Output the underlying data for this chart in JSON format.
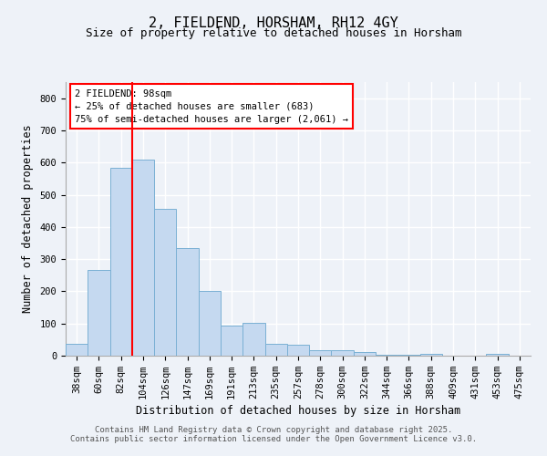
{
  "title1": "2, FIELDEND, HORSHAM, RH12 4GY",
  "title2": "Size of property relative to detached houses in Horsham",
  "xlabel": "Distribution of detached houses by size in Horsham",
  "ylabel": "Number of detached properties",
  "categories": [
    "38sqm",
    "60sqm",
    "82sqm",
    "104sqm",
    "126sqm",
    "147sqm",
    "169sqm",
    "191sqm",
    "213sqm",
    "235sqm",
    "257sqm",
    "278sqm",
    "300sqm",
    "322sqm",
    "344sqm",
    "366sqm",
    "388sqm",
    "409sqm",
    "431sqm",
    "453sqm",
    "475sqm"
  ],
  "values": [
    38,
    265,
    585,
    610,
    455,
    335,
    200,
    93,
    103,
    38,
    33,
    16,
    16,
    10,
    4,
    3,
    5,
    0,
    0,
    5,
    0
  ],
  "bar_color": "#c5d9f0",
  "bar_edge_color": "#7ab0d4",
  "vline_x_index": 3,
  "vline_color": "red",
  "annotation_line1": "2 FIELDEND: 98sqm",
  "annotation_line2": "← 25% of detached houses are smaller (683)",
  "annotation_line3": "75% of semi-detached houses are larger (2,061) →",
  "annotation_box_color": "white",
  "annotation_box_edge_color": "red",
  "ylim": [
    0,
    850
  ],
  "yticks": [
    0,
    100,
    200,
    300,
    400,
    500,
    600,
    700,
    800
  ],
  "footer1": "Contains HM Land Registry data © Crown copyright and database right 2025.",
  "footer2": "Contains public sector information licensed under the Open Government Licence v3.0.",
  "bg_color": "#eef2f8",
  "grid_color": "white",
  "title1_fontsize": 11,
  "title2_fontsize": 9,
  "xlabel_fontsize": 8.5,
  "ylabel_fontsize": 8.5,
  "tick_fontsize": 7.5,
  "annotation_fontsize": 7.5,
  "footer_fontsize": 6.5
}
